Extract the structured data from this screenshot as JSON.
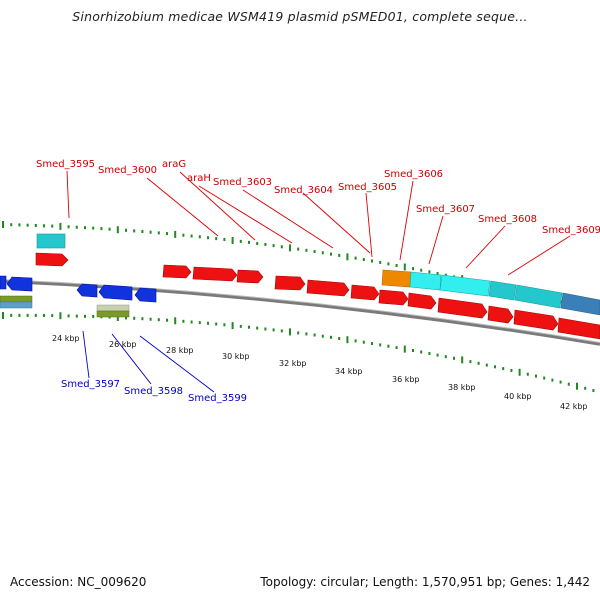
{
  "title": "Sinorhizobium medicae WSM419 plasmid pSMED01, complete seque...",
  "footer": {
    "accession": "Accession: NC_009620",
    "topology": "Topology: circular; Length: 1,570,951 bp; Genes: 1,442"
  },
  "colors": {
    "forward_gene": "#ee1111",
    "reverse_gene": "#1133dd",
    "rna_cyan": "#22c8cc",
    "orange": "#ee8800",
    "olive": "#7a9a2a",
    "backbone": "#888888",
    "tick_green": "#228822",
    "label_red": "#cc0000",
    "label_blue": "#0000cc"
  },
  "scale": {
    "unit": "kbp",
    "labels": [
      "24 kbp",
      "26 kbp",
      "28 kbp",
      "30 kbp",
      "32 kbp",
      "34 kbp",
      "36 kbp",
      "38 kbp",
      "40 kbp",
      "42 kbp"
    ]
  },
  "gene_labels_top": [
    "Smed_3595",
    "Smed_3600",
    "araG",
    "araH",
    "Smed_3603",
    "Smed_3604",
    "Smed_3605",
    "Smed_3606",
    "Smed_3607",
    "Smed_3608",
    "Smed_3609"
  ],
  "gene_labels_bottom": [
    "Smed_3597",
    "Smed_3598",
    "Smed_3599"
  ]
}
